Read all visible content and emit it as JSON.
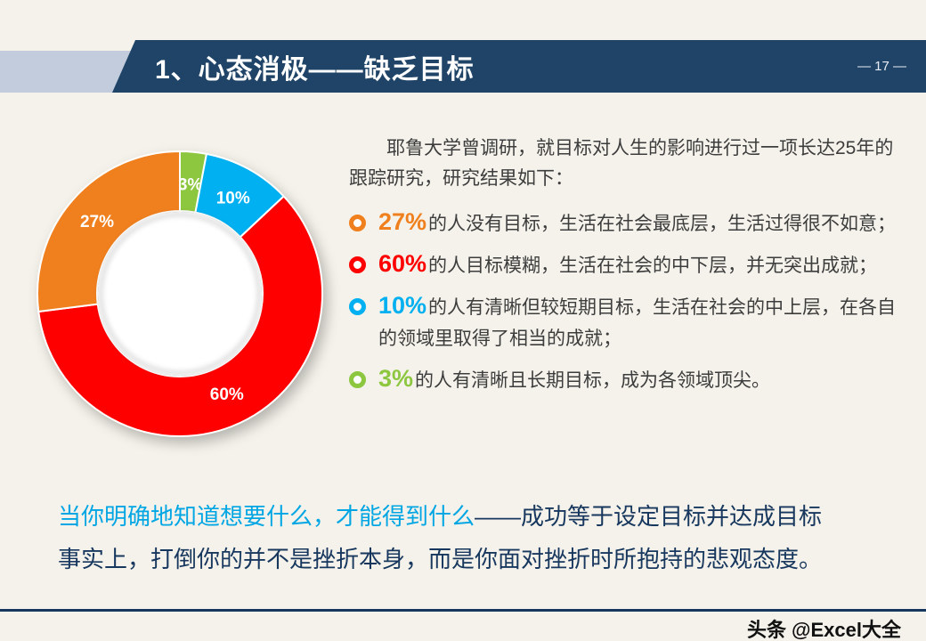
{
  "slide": {
    "header": {
      "title": "1、心态消极——缺乏目标",
      "page_number": "— 17 —"
    },
    "intro": "耶鲁大学曾调研，就目标对人生的影响进行过一项长达25年的跟踪研究，研究结果如下：",
    "bullets": [
      {
        "pct": "27%",
        "color": "#f0801e",
        "text": "的人没有目标，生活在社会最底层，生活过得很不如意；"
      },
      {
        "pct": "60%",
        "color": "#fe0000",
        "text": "的人目标模糊，生活在社会的中下层，并无突出成就；"
      },
      {
        "pct": "10%",
        "color": "#00b0f0",
        "text": "的人有清晰但较短期目标，生活在社会的中上层，在各自的领域里取得了相当的成就；"
      },
      {
        "pct": "3%",
        "color": "#8dc63f",
        "text": "的人有清晰且长期目标，成为各领域顶尖。"
      }
    ],
    "conclusion": {
      "highlight": "当你明确地知道想要什么，才能得到什么",
      "rest": "——成功等于设定目标并达成目标",
      "line2": "事实上，打倒你的并不是挫折本身，而是你面对挫折时所抱持的悲观态度。",
      "highlight_color": "#00a6e4",
      "dark_color": "#17375e"
    },
    "footer": "头条 @Excel大全"
  },
  "chart_data": {
    "type": "pie",
    "donut": true,
    "start_angle_deg": 0,
    "direction": "clockwise",
    "inner_radius_ratio": 0.58,
    "label_color": "#ffffff",
    "legend": "none",
    "segments": [
      {
        "label": "3%",
        "value": 3,
        "color": "#8dc63f"
      },
      {
        "label": "10%",
        "value": 10,
        "color": "#00b0f0"
      },
      {
        "label": "60%",
        "value": 60,
        "color": "#fe0000"
      },
      {
        "label": "27%",
        "value": 27,
        "color": "#f0801e"
      }
    ]
  }
}
